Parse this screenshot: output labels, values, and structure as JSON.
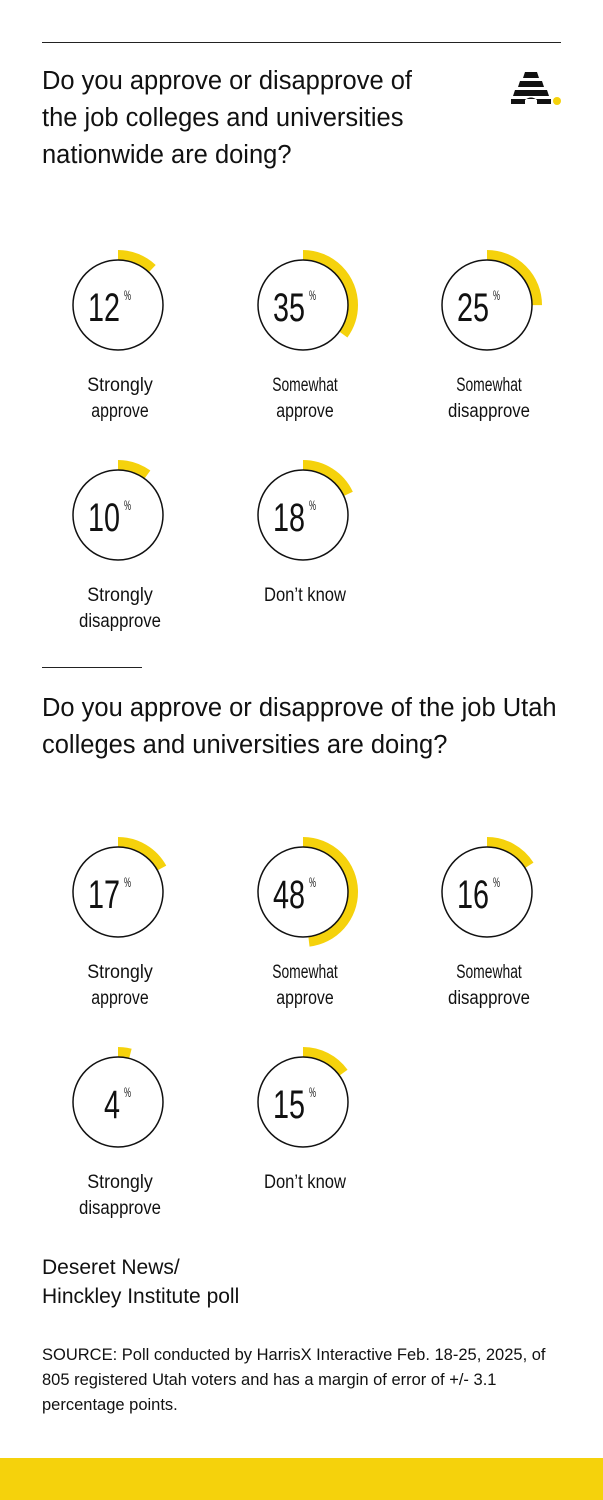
{
  "colors": {
    "accent": "#f5d20c",
    "ring": "#111111",
    "text": "#111111",
    "background": "#ffffff"
  },
  "logo_icon": "beehive-icon",
  "chart_data": [
    {
      "type": "radial-progress",
      "title": "Do you approve or disapprove of the job colleges and universities nationwide are doing?",
      "unit": "%",
      "categories": [
        "Strongly approve",
        "Somewhat approve",
        "Somewhat disapprove",
        "Strongly disapprove",
        "Don’t know"
      ],
      "category_lines": [
        [
          "Strongly",
          "approve"
        ],
        [
          "Somewhat",
          "approve"
        ],
        [
          "Somewhat",
          "disapprove"
        ],
        [
          "Strongly",
          "disapprove"
        ],
        [
          "Don’t know"
        ]
      ],
      "values": [
        12,
        35,
        25,
        10,
        18
      ]
    },
    {
      "type": "radial-progress",
      "title": "Do you approve or disapprove of the job Utah colleges and universities are doing?",
      "unit": "%",
      "categories": [
        "Strongly approve",
        "Somewhat approve",
        "Somewhat disapprove",
        "Strongly disapprove",
        "Don’t know"
      ],
      "category_lines": [
        [
          "Strongly",
          "approve"
        ],
        [
          "Somewhat",
          "approve"
        ],
        [
          "Somewhat",
          "disapprove"
        ],
        [
          "Strongly",
          "disapprove"
        ],
        [
          "Don’t know"
        ]
      ],
      "values": [
        17,
        48,
        16,
        4,
        15
      ]
    }
  ],
  "footer": {
    "brand": "Deseret News/\nHinckley Institute poll",
    "source": "SOURCE: Poll conducted by HarrisX Interactive Feb. 18-25, 2025, of 805 registered Utah voters and has a margin of error of +/- 3.1 percentage points."
  }
}
